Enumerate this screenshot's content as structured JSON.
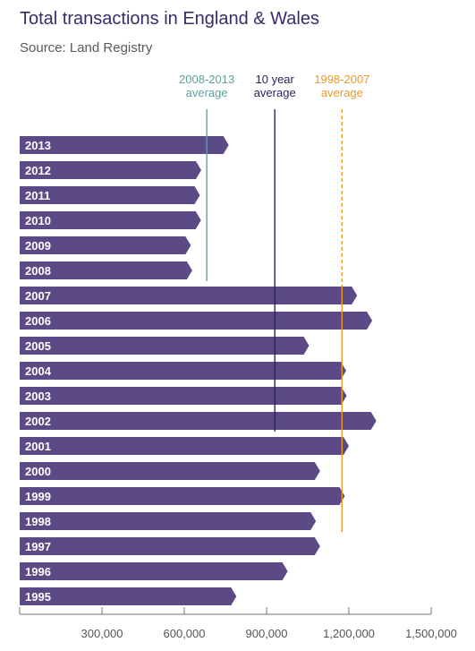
{
  "chart_data": {
    "type": "bar",
    "orientation": "horizontal",
    "title": "Total transactions in England & Wales",
    "subtitle": "Source: Land Registry",
    "categories": [
      "2013",
      "2012",
      "2011",
      "2010",
      "2009",
      "2008",
      "2007",
      "2006",
      "2005",
      "2004",
      "2003",
      "2002",
      "2001",
      "2000",
      "1999",
      "1998",
      "1997",
      "1996",
      "1995"
    ],
    "values": [
      762000,
      662000,
      657000,
      661000,
      624000,
      629000,
      1230000,
      1285000,
      1055000,
      1190000,
      1192000,
      1300000,
      1200000,
      1095000,
      1185000,
      1080000,
      1095000,
      977000,
      790000
    ],
    "xlim": [
      0,
      1500000
    ],
    "x_ticks": [
      300000,
      600000,
      900000,
      1200000,
      1500000
    ],
    "x_tick_labels": [
      "300,000",
      "600,000",
      "900,000",
      "1,200,000",
      "1,500,000"
    ],
    "bar_color": "#5b4a85",
    "reference_lines": [
      {
        "label_line1": "2008-2013",
        "label_line2": "average",
        "value": 682000,
        "color": "#5aa39a",
        "dashed": false,
        "from_category": "2013",
        "to_category": "2008"
      },
      {
        "label_line1": "10 year",
        "label_line2": "average",
        "value": 930000,
        "color": "#2c1f5e",
        "dashed": false,
        "from_category": "2013",
        "to_category": "2002"
      },
      {
        "label_line1": "1998-2007",
        "label_line2": "average",
        "value": 1175000,
        "color": "#e89a2a",
        "dashed": true,
        "from_category": "2013",
        "to_category": "2002"
      },
      {
        "label_line1": "",
        "label_line2": "",
        "value": 1175000,
        "color": "#e89a2a",
        "dashed": false,
        "from_category": "2007",
        "to_category": "1998"
      }
    ]
  }
}
